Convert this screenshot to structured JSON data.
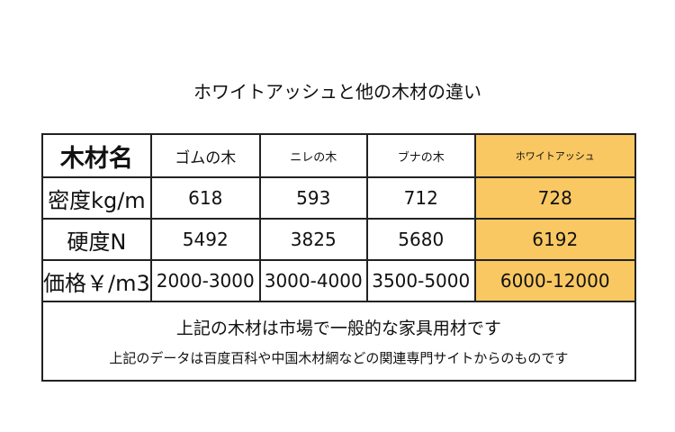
{
  "title": "ホワイトアッシュと他の木材の違い",
  "table": {
    "header": [
      "木材名",
      "ゴムの木",
      "ニレの木",
      "ブナの木",
      "ホワイトアッシュ"
    ],
    "rows": [
      [
        "密度kg/m",
        618,
        593,
        712,
        728
      ],
      [
        "硬度N",
        5492,
        3825,
        5680,
        6192
      ],
      [
        "価格￥/m3",
        "2000-3000",
        "3000-4000",
        "3500-5000",
        "6000-12000"
      ]
    ]
  },
  "footer": [
    "上記の木材は市場で一般的な家具用材です",
    "上記のデータは百度百科や中国木材網などの関連専門サイトからのものです"
  ]
}
